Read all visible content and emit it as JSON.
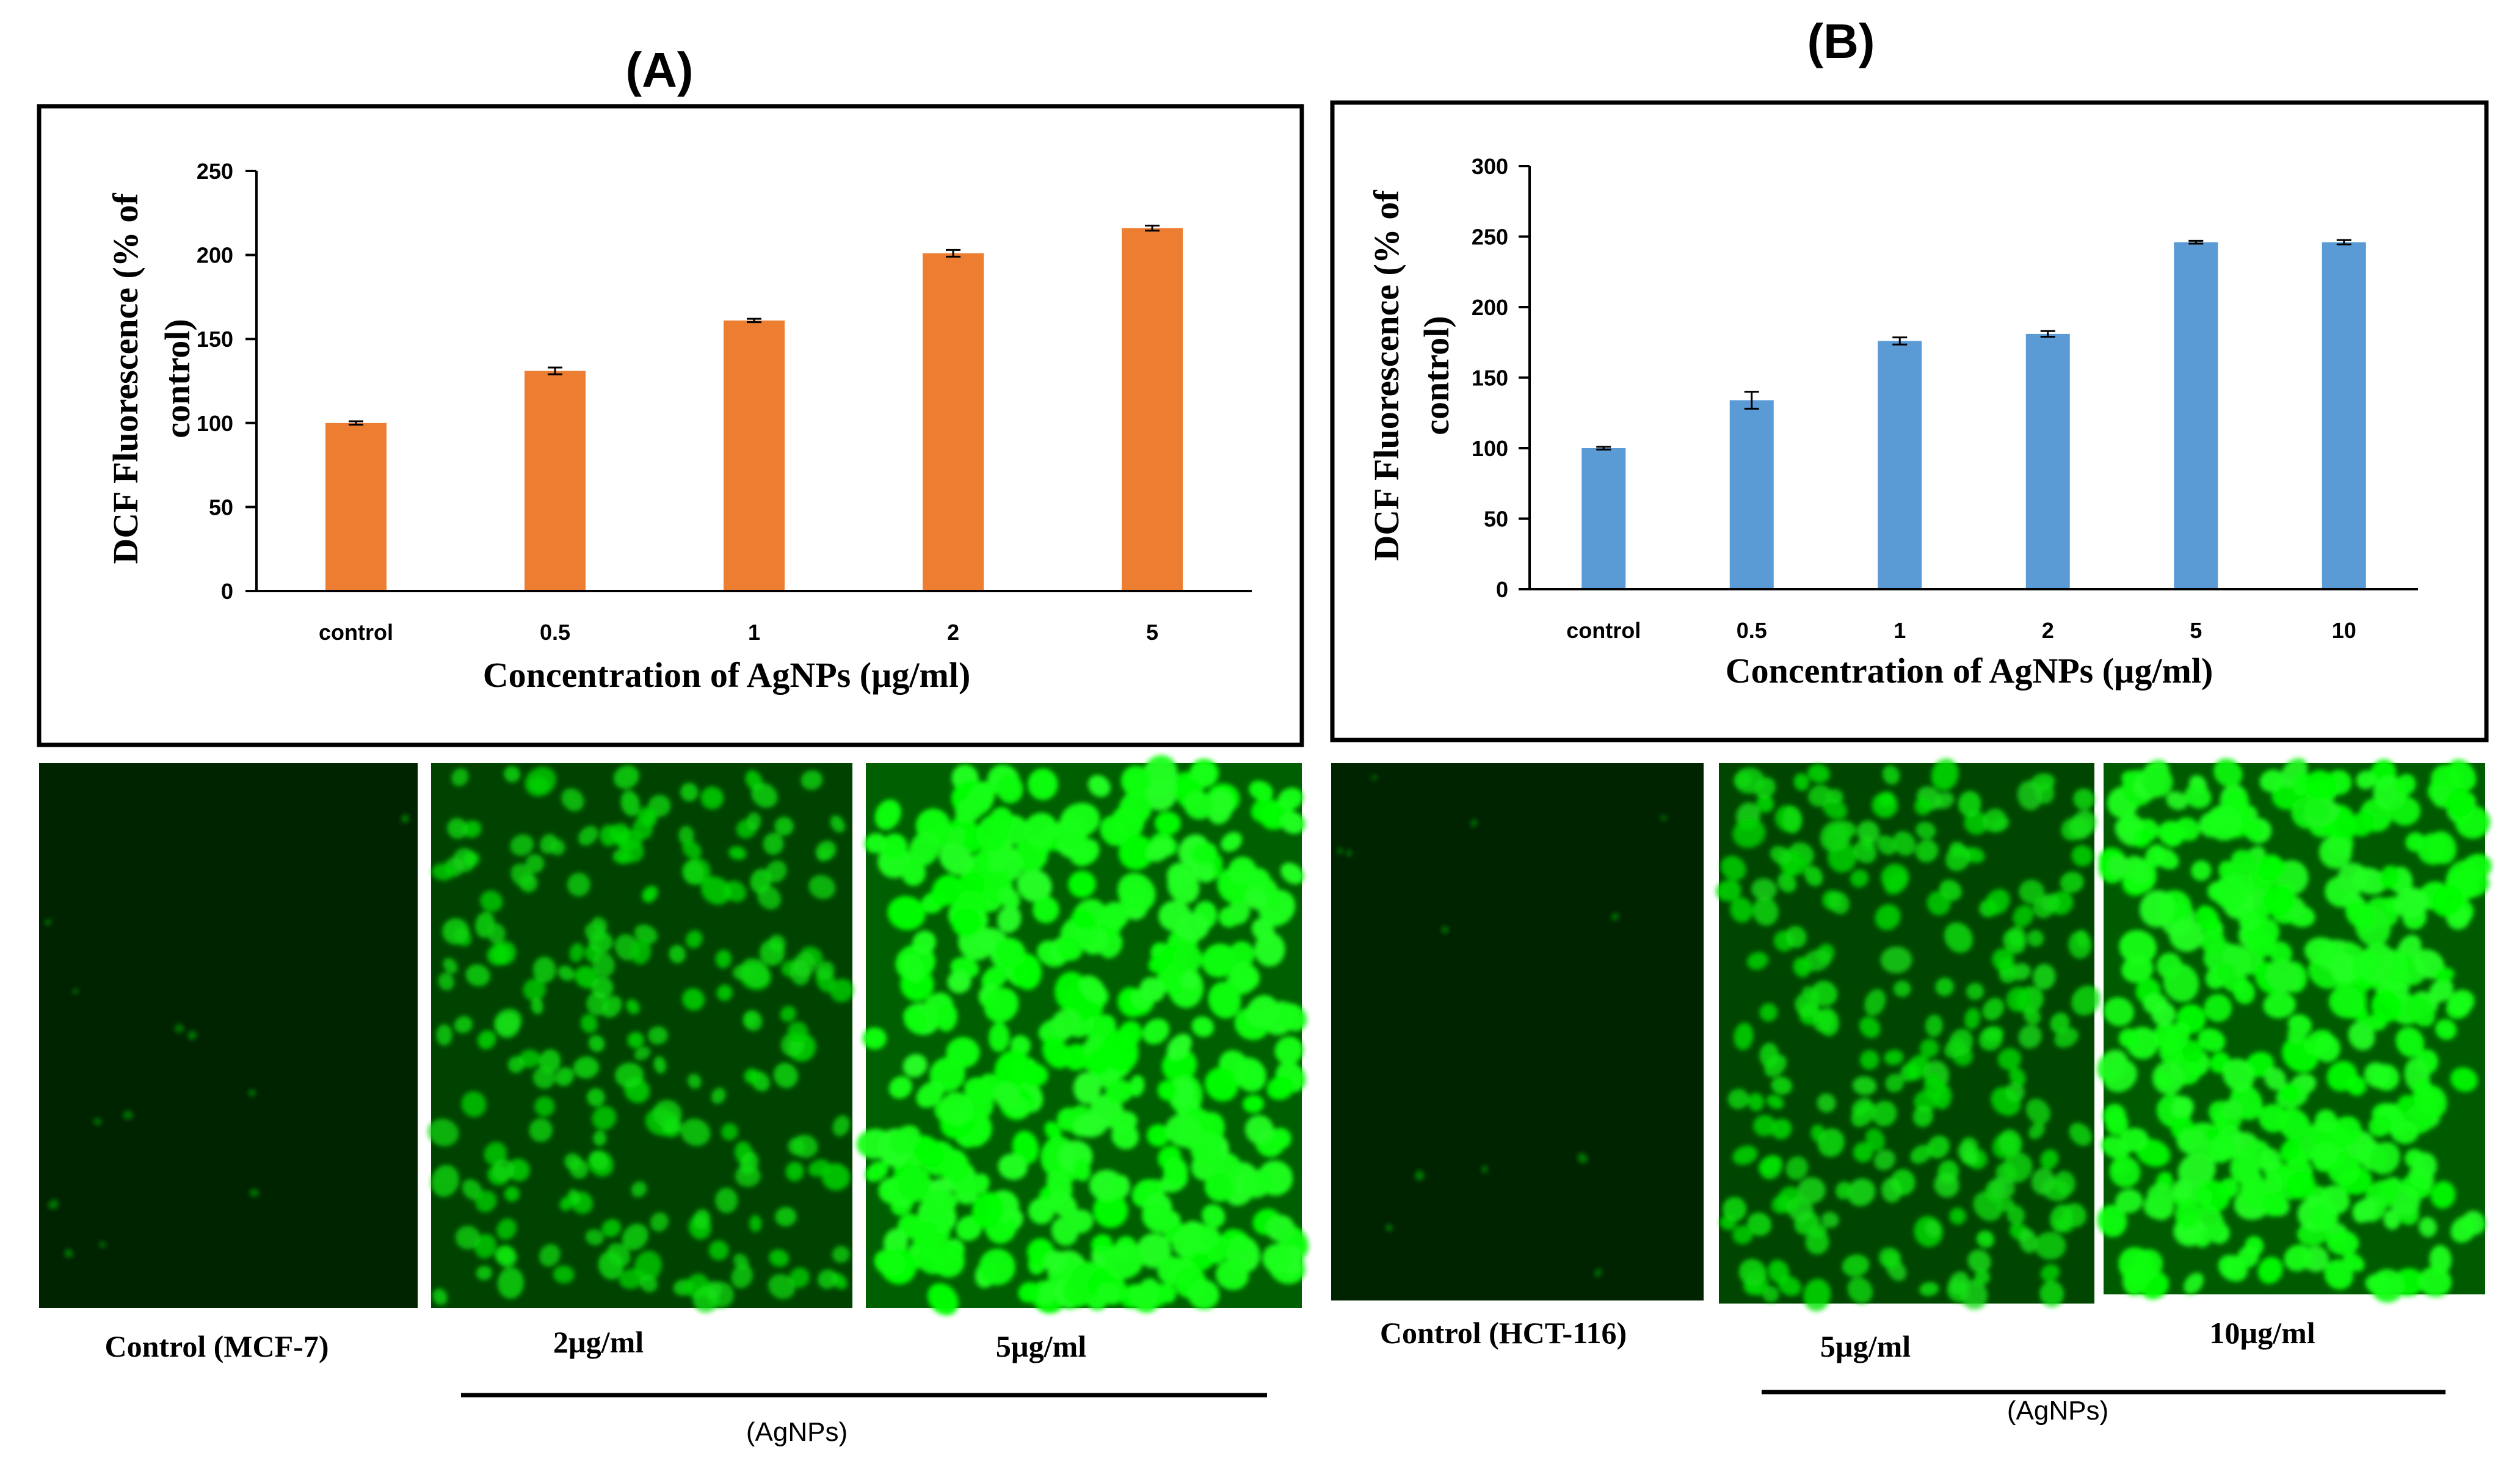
{
  "chart_data": [
    {
      "type": "bar",
      "panel": "(A)",
      "title": "",
      "categories": [
        "control",
        "0.5",
        "1",
        "2",
        "5"
      ],
      "values": [
        100,
        131,
        161,
        201,
        216
      ],
      "errors": [
        1,
        2,
        1,
        2,
        1.5
      ],
      "xlabel": "Concentration of AgNPs (µg/ml)",
      "ylabel_line1": "DCF Fluorescence  (% of",
      "ylabel_line2": "control)",
      "ylim": [
        0,
        250
      ],
      "yticks": [
        0,
        50,
        100,
        150,
        200,
        250
      ],
      "ytick_labels": [
        "0",
        "50",
        "100",
        "150",
        "200",
        "250"
      ],
      "color": "#ED7D31",
      "grid": false,
      "legend": "none"
    },
    {
      "type": "bar",
      "panel": "(B)",
      "title": "",
      "categories": [
        "control",
        "0.5",
        "1",
        "2",
        "5",
        "10"
      ],
      "values": [
        100,
        134,
        176,
        181,
        246,
        246
      ],
      "errors": [
        1,
        6,
        2.5,
        2,
        1,
        1.5
      ],
      "xlabel": "Concentration of AgNPs (µg/ml)",
      "ylabel_line1": "DCF Fluorescence  (% of",
      "ylabel_line2": "control)",
      "ylim": [
        0,
        300
      ],
      "yticks": [
        0,
        50,
        100,
        150,
        200,
        250,
        300
      ],
      "ytick_labels": [
        "0",
        "50",
        "100",
        "150",
        "200",
        "250",
        "300"
      ],
      "color": "#5B9BD5",
      "grid": false,
      "legend": "none"
    }
  ],
  "images": {
    "A": [
      {
        "caption": "Control (MCF-7)",
        "brightness": 0.1
      },
      {
        "caption": "2µg/ml",
        "brightness": 0.55
      },
      {
        "caption": "5µg/ml",
        "brightness": 0.95
      }
    ],
    "B": [
      {
        "caption": "Control (HCT-116)",
        "brightness": 0.1
      },
      {
        "caption": "5µg/ml",
        "brightness": 0.6
      },
      {
        "caption": "10µg/ml",
        "brightness": 0.9
      }
    ]
  },
  "group_labels": {
    "A": "(AgNPs)",
    "B": "(AgNPs)"
  }
}
